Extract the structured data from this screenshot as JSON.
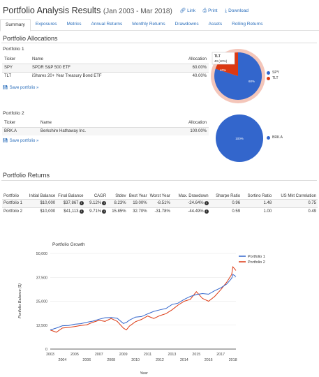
{
  "header": {
    "title": "Portfolio Analysis Results",
    "range": "(Jan 2003 - Mar 2018)",
    "link_label": "Link",
    "print_label": "Print",
    "download_label": "Download"
  },
  "tabs": [
    {
      "label": "Summary",
      "active": true
    },
    {
      "label": "Exposures"
    },
    {
      "label": "Metrics"
    },
    {
      "label": "Annual Returns"
    },
    {
      "label": "Monthly Returns"
    },
    {
      "label": "Drawdowns"
    },
    {
      "label": "Assets"
    },
    {
      "label": "Rolling Returns"
    }
  ],
  "allocations": {
    "heading": "Portfolio Allocations",
    "columns": {
      "ticker": "Ticker",
      "name": "Name",
      "allocation": "Allocation"
    },
    "save_label": "Save portfolio »",
    "portfolios": [
      {
        "label": "Portfolio 1",
        "rows": [
          {
            "ticker": "SPY",
            "name": "SPDR S&P 500 ETF",
            "allocation": "60.00%"
          },
          {
            "ticker": "TLT",
            "name": "iShares 20+ Year Treasury Bond ETF",
            "allocation": "40.00%"
          }
        ],
        "pie": {
          "slices": [
            {
              "label": "SPY",
              "value": 60,
              "pct_label": "60%",
              "color": "#3366cc"
            },
            {
              "label": "TLT",
              "value": 40,
              "pct_label": "40%",
              "color": "#dc3912"
            }
          ],
          "tooltip_title": "TLT",
          "tooltip_value": "40 (40%)"
        }
      },
      {
        "label": "Portfolio 2",
        "rows": [
          {
            "ticker": "BRK.A",
            "name": "Berkshire Hathaway Inc.",
            "allocation": "100.00%"
          }
        ],
        "pie": {
          "slices": [
            {
              "label": "BRK.A",
              "value": 100,
              "pct_label": "100%",
              "color": "#3366cc"
            }
          ]
        }
      }
    ]
  },
  "returns": {
    "heading": "Portfolio Returns",
    "columns": [
      "Portfolio",
      "Initial Balance",
      "Final Balance",
      "CAGR",
      "Stdev",
      "Best Year",
      "Worst Year",
      "Max. Drawdown",
      "Sharpe Ratio",
      "Sortino Ratio",
      "US Mkt Correlation"
    ],
    "rows": [
      {
        "portfolio": "Portfolio 1",
        "initial": "$10,000",
        "final": "$37,867",
        "cagr": "9.12%",
        "stdev": "8.23%",
        "best": "19.00%",
        "worst": "-8.51%",
        "maxdd": "-24.64%",
        "sharpe": "0.96",
        "sortino": "1.48",
        "corr": "0.75"
      },
      {
        "portfolio": "Portfolio 2",
        "initial": "$10,000",
        "final": "$41,113",
        "cagr": "9.71%",
        "stdev": "15.85%",
        "best": "32.70%",
        "worst": "-31.78%",
        "maxdd": "-44.49%",
        "sharpe": "0.59",
        "sortino": "1.00",
        "corr": "0.49"
      }
    ]
  },
  "chart_data": {
    "type": "line",
    "title": "Portfolio Growth",
    "xlabel": "Year",
    "ylabel": "Portfolio Balance ($)",
    "ylim": [
      0,
      50000
    ],
    "yticks": [
      0,
      12500,
      25000,
      37500,
      50000
    ],
    "ytick_labels": [
      "0",
      "12,500",
      "25,000",
      "37,500",
      "50,000"
    ],
    "xlim": [
      2003,
      2018.25
    ],
    "xticks_top": [
      2003,
      2005,
      2007,
      2009,
      2011,
      2013,
      2015,
      2017
    ],
    "xticks_bottom": [
      2004,
      2006,
      2008,
      2010,
      2012,
      2014,
      2016,
      2018
    ],
    "legend_position": "top-right",
    "x": [
      2003,
      2003.5,
      2004,
      2004.5,
      2005,
      2005.5,
      2006,
      2006.5,
      2007,
      2007.5,
      2008,
      2008.5,
      2009,
      2009.25,
      2009.5,
      2010,
      2010.5,
      2011,
      2011.5,
      2012,
      2012.5,
      2013,
      2013.5,
      2014,
      2014.5,
      2015,
      2015.5,
      2016,
      2016.5,
      2017,
      2017.5,
      2017.9,
      2018,
      2018.25
    ],
    "series": [
      {
        "name": "Portfolio 1",
        "color": "#3366cc",
        "values": [
          10000,
          11000,
          12200,
          12300,
          13000,
          13300,
          14000,
          14600,
          15600,
          16400,
          16500,
          16100,
          13400,
          13900,
          15100,
          16700,
          17000,
          18400,
          19700,
          20500,
          21200,
          23300,
          24000,
          26000,
          27500,
          28500,
          29000,
          28700,
          30500,
          32000,
          34000,
          37000,
          39000,
          37867
        ]
      },
      {
        "name": "Portfolio 2",
        "color": "#dc3912",
        "values": [
          10000,
          8800,
          11000,
          11300,
          11800,
          12300,
          12700,
          14000,
          15000,
          14500,
          16000,
          14500,
          11000,
          10000,
          12000,
          14300,
          15500,
          17300,
          16000,
          17500,
          18500,
          20500,
          23000,
          25000,
          26000,
          30000,
          26500,
          25000,
          27500,
          31000,
          35000,
          39000,
          43000,
          41113
        ]
      }
    ]
  }
}
